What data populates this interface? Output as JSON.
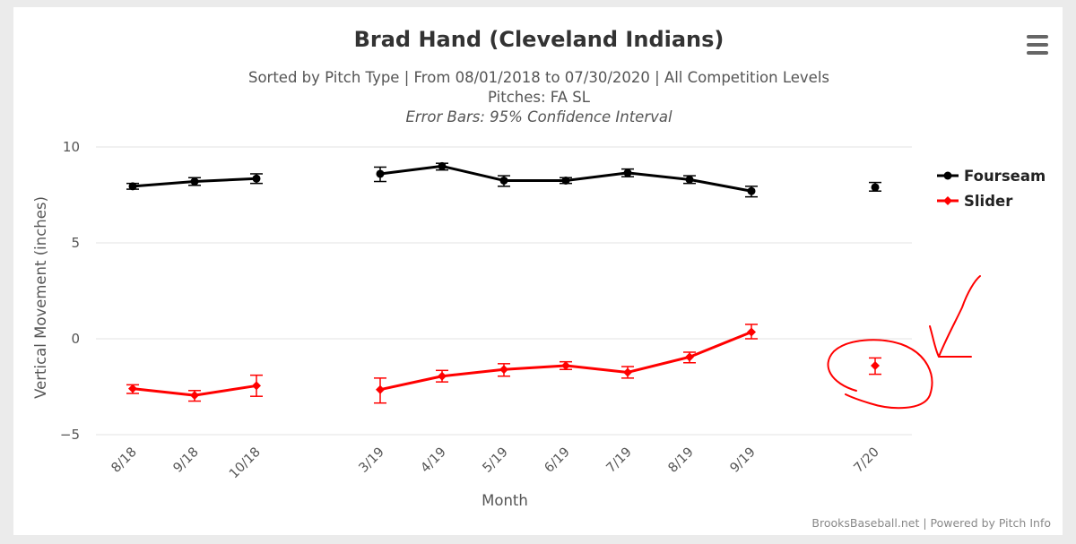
{
  "chart_data": {
    "type": "line",
    "title": "Brad Hand (Cleveland Indians)",
    "subtitle_lines": [
      "Sorted by Pitch Type | From 08/01/2018 to 07/30/2020 | All Competition Levels",
      "Pitches: FA SL"
    ],
    "note": "Error Bars: 95% Confidence Interval",
    "xlabel": "Month",
    "ylabel": "Vertical Movement (inches)",
    "categories": [
      "8/18",
      "9/18",
      "10/18",
      "",
      "3/19",
      "4/19",
      "5/19",
      "6/19",
      "7/19",
      "8/19",
      "9/19",
      "",
      "7/20"
    ],
    "y_ticks": [
      "10",
      "5",
      "0",
      "−5"
    ],
    "ylim": [
      -5,
      10
    ],
    "grid": true,
    "legend_position": "right",
    "series": [
      {
        "name": "Fourseam",
        "color": "#000000",
        "marker": "circle",
        "values": [
          7.95,
          8.2,
          8.35,
          null,
          8.6,
          9.0,
          8.25,
          8.25,
          8.65,
          8.3,
          7.7,
          null,
          7.9
        ],
        "error_low": [
          7.8,
          8.0,
          8.1,
          null,
          8.2,
          8.8,
          7.95,
          8.1,
          8.45,
          8.1,
          7.4,
          null,
          7.7
        ],
        "error_high": [
          8.1,
          8.4,
          8.6,
          null,
          8.95,
          9.15,
          8.5,
          8.4,
          8.85,
          8.5,
          7.95,
          null,
          8.15
        ]
      },
      {
        "name": "Slider",
        "color": "#ff0000",
        "marker": "diamond",
        "values": [
          -2.6,
          -2.95,
          -2.45,
          null,
          -2.65,
          -1.95,
          -1.6,
          -1.4,
          -1.75,
          -0.95,
          0.35,
          null,
          -1.4
        ],
        "error_low": [
          -2.85,
          -3.25,
          -3.0,
          null,
          -3.35,
          -2.25,
          -1.95,
          -1.6,
          -2.05,
          -1.25,
          0.0,
          null,
          -1.85
        ],
        "error_high": [
          -2.4,
          -2.7,
          -1.9,
          null,
          -2.05,
          -1.65,
          -1.3,
          -1.2,
          -1.45,
          -0.7,
          0.75,
          null,
          -1.0
        ]
      }
    ]
  },
  "menu_icon": "hamburger-menu-icon",
  "credits": "BrooksBaseball.net | Powered by Pitch Info",
  "annotation": {
    "color": "#ff0000",
    "description_shapes": [
      "hand-drawn-circle",
      "hand-drawn-arrow"
    ]
  }
}
